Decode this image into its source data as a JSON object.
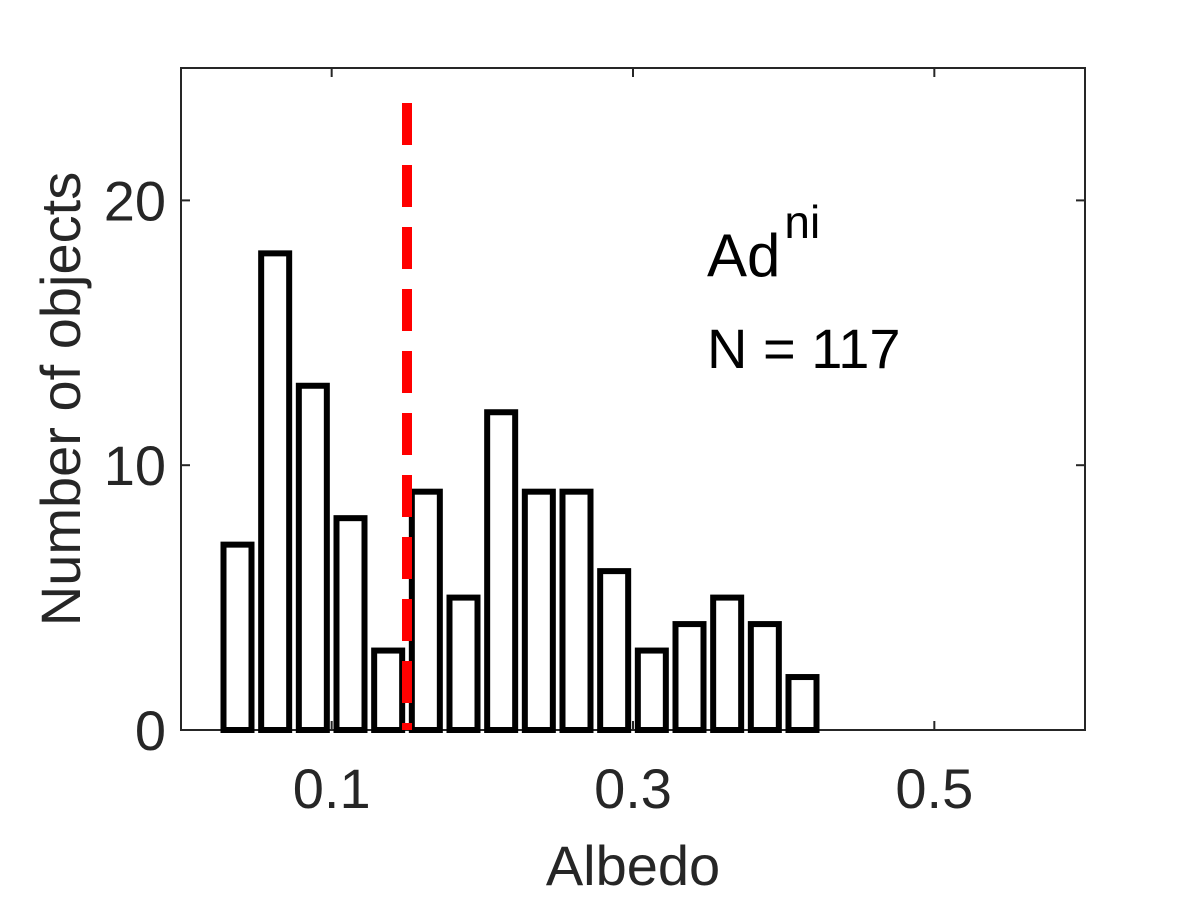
{
  "chart_data": {
    "type": "bar",
    "xlabel": "Albedo",
    "ylabel": "Number of objects",
    "xlim": [
      0.0,
      0.6
    ],
    "ylim": [
      0,
      25
    ],
    "xticks": [
      0.1,
      0.3,
      0.5
    ],
    "xtick_labels": [
      "0.1",
      "0.3",
      "0.5"
    ],
    "yticks": [
      0,
      10,
      20
    ],
    "ytick_labels": [
      "0",
      "10",
      "20"
    ],
    "bin_width": 0.025,
    "bin_centers": [
      0.0375,
      0.0625,
      0.0875,
      0.1125,
      0.1375,
      0.1625,
      0.1875,
      0.2125,
      0.2375,
      0.2625,
      0.2875,
      0.3125,
      0.3375,
      0.3625,
      0.3875,
      0.4125
    ],
    "values": [
      7,
      18,
      13,
      8,
      3,
      9,
      5,
      12,
      9,
      9,
      6,
      3,
      4,
      5,
      4,
      2
    ],
    "reference_line": {
      "x": 0.15,
      "style": "dashed",
      "color": "#ff0000"
    },
    "annotation": {
      "main": "Ad",
      "superscript": "ni",
      "count": "N = 117"
    },
    "grid": false,
    "colors": {
      "bar_fill": "#ffffff",
      "bar_edge": "#000000",
      "axis": "#262626",
      "text": "#262626"
    }
  }
}
